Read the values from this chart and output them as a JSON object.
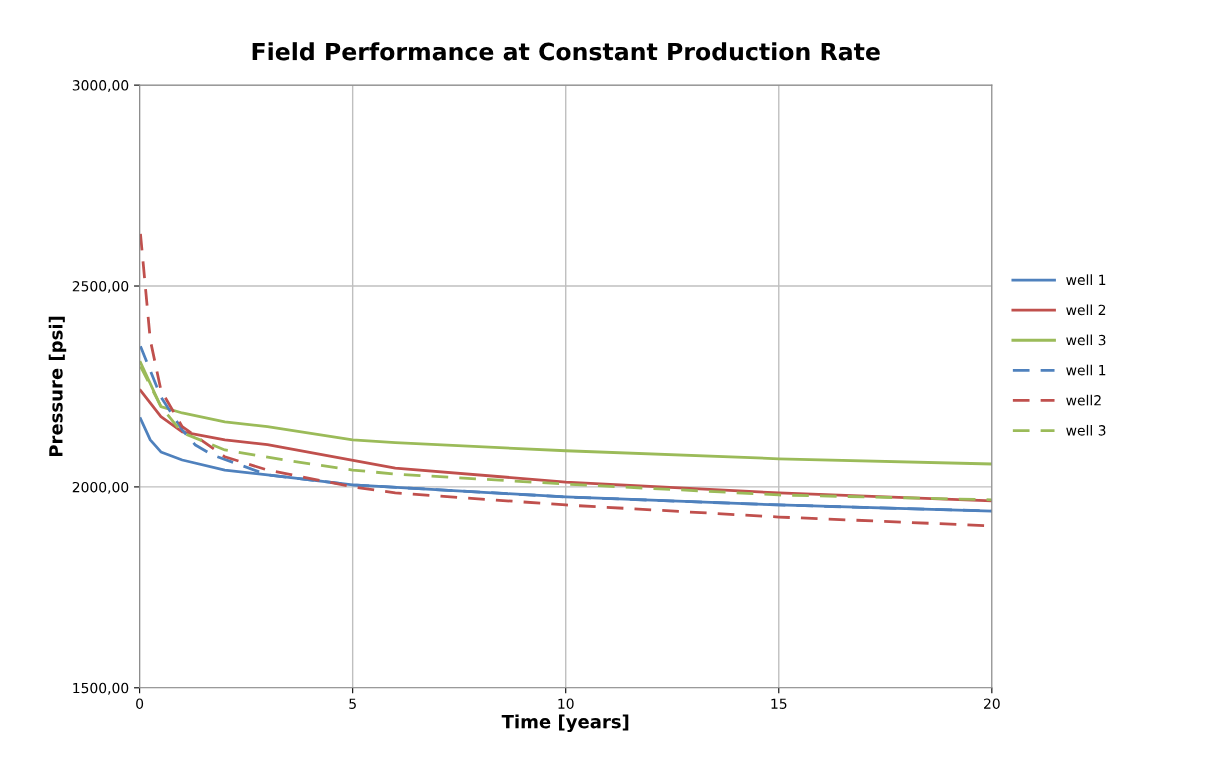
{
  "chart_data": {
    "type": "line",
    "title": "Field Performance at Constant Production Rate",
    "xlabel": "Time [years]",
    "ylabel": "Pressure [psi]",
    "xlim": [
      0,
      20
    ],
    "xticks": [
      0,
      5,
      10,
      15,
      20
    ],
    "ylim": [
      1500,
      3000
    ],
    "yticks": [
      {
        "value": 1500,
        "label": "1500,00"
      },
      {
        "value": 2000,
        "label": "2000,00"
      },
      {
        "value": 2500,
        "label": "2500,00"
      },
      {
        "value": 3000,
        "label": "3000,00"
      }
    ],
    "grid": true,
    "legend": "right",
    "marker": "none",
    "series": [
      {
        "name": "well 1",
        "color": "#4f81bd",
        "line_style": "solid",
        "x": [
          0.02,
          0.25,
          0.5,
          1,
          2,
          3,
          5,
          10,
          15,
          20
        ],
        "values": [
          2170,
          2117,
          2087,
          2067,
          2042,
          2030,
          2005,
          1975,
          1955,
          1940
        ]
      },
      {
        "name": "well 2",
        "color": "#c0504d",
        "line_style": "solid",
        "x": [
          0.02,
          0.5,
          1,
          2,
          3,
          6,
          10,
          15,
          20
        ],
        "values": [
          2240,
          2175,
          2137,
          2117,
          2105,
          2047,
          2012,
          1985,
          1965
        ]
      },
      {
        "name": "well 3",
        "color": "#9bbb59",
        "line_style": "solid",
        "x": [
          0.02,
          0.5,
          1,
          2,
          3,
          5,
          6,
          10,
          15,
          20
        ],
        "values": [
          2310,
          2200,
          2184,
          2162,
          2150,
          2117,
          2110,
          2090,
          2070,
          2057
        ]
      },
      {
        "name": "well 1",
        "color": "#4f81bd",
        "line_style": "dashed",
        "x": [
          0.02,
          0.5,
          1,
          1.3,
          1.7,
          3,
          5,
          10,
          15,
          20
        ],
        "values": [
          2350,
          2224,
          2142,
          2105,
          2080,
          2030,
          2005,
          1975,
          1955,
          1940
        ]
      },
      {
        "name": "well2",
        "color": "#c0504d",
        "line_style": "dashed",
        "x": [
          0.02,
          0.25,
          0.5,
          1,
          2,
          3,
          5,
          6,
          10,
          15,
          20
        ],
        "values": [
          2630,
          2366,
          2241,
          2150,
          2075,
          2042,
          2000,
          1985,
          1955,
          1925,
          1903
        ]
      },
      {
        "name": "well 3",
        "color": "#9bbb59",
        "line_style": "dashed",
        "x": [
          0.02,
          0.5,
          1,
          2,
          3.4,
          5,
          6,
          10,
          15,
          20
        ],
        "values": [
          2300,
          2200,
          2135,
          2092,
          2067,
          2042,
          2032,
          2007,
          1980,
          1968
        ]
      }
    ]
  }
}
